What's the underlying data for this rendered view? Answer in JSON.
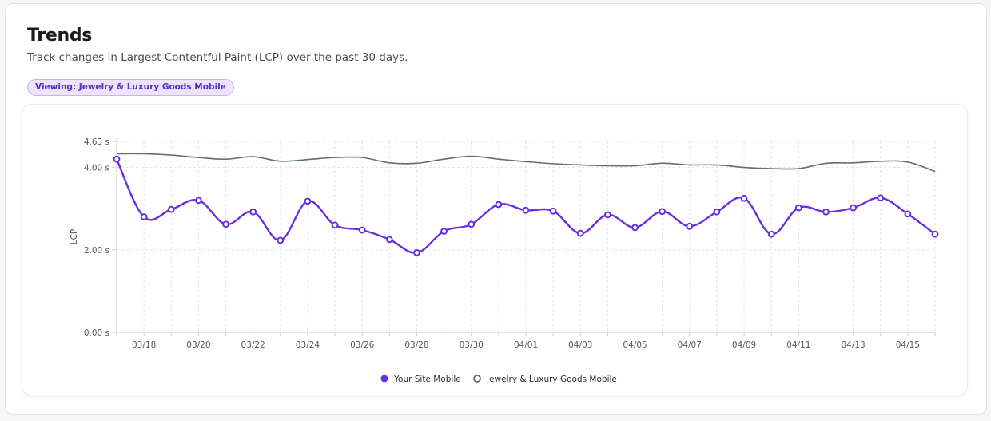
{
  "header": {
    "title": "Trends",
    "subtitle": "Track changes in Largest Contentful Paint (LCP) over the past 30 days.",
    "badge": "Viewing: Jewelry & Luxury Goods Mobile"
  },
  "colors": {
    "site": "#6a2fe0",
    "benchmark": "#5b7177",
    "grid": "#e3e3e8",
    "axis": "#cfcfd6"
  },
  "chart_data": {
    "type": "line",
    "title": "",
    "xlabel": "",
    "ylabel": "LCP",
    "ylim": [
      0,
      4.63
    ],
    "y_ticks": [
      {
        "value": 0,
        "label": "0.00 s"
      },
      {
        "value": 2,
        "label": "2.00 s"
      },
      {
        "value": 4,
        "label": "4.00 s"
      },
      {
        "value": 4.63,
        "label": "4.63 s"
      }
    ],
    "x": [
      "03/17",
      "03/18",
      "03/19",
      "03/20",
      "03/21",
      "03/22",
      "03/23",
      "03/24",
      "03/25",
      "03/26",
      "03/27",
      "03/28",
      "03/29",
      "03/30",
      "03/31",
      "04/01",
      "04/02",
      "04/03",
      "04/04",
      "04/05",
      "04/06",
      "04/07",
      "04/08",
      "04/09",
      "04/10",
      "04/11",
      "04/12",
      "04/13",
      "04/14",
      "04/15",
      "04/16"
    ],
    "x_tick_labels": [
      "03/18",
      "03/20",
      "03/22",
      "03/24",
      "03/26",
      "03/28",
      "03/30",
      "04/01",
      "04/03",
      "04/05",
      "04/07",
      "04/09",
      "04/11",
      "04/13",
      "04/15"
    ],
    "grid": true,
    "legend_position": "bottom",
    "series": [
      {
        "name": "Your Site Mobile",
        "values": [
          4.2,
          2.8,
          2.98,
          3.2,
          2.62,
          2.92,
          2.23,
          3.18,
          2.6,
          2.48,
          2.25,
          1.93,
          2.45,
          2.62,
          3.1,
          2.96,
          2.94,
          2.4,
          2.85,
          2.54,
          2.93,
          2.57,
          2.92,
          3.25,
          2.38,
          3.02,
          2.92,
          3.02,
          3.26,
          2.87,
          2.38
        ],
        "markers": true
      },
      {
        "name": "Jewelry & Luxury Goods Mobile",
        "values": [
          4.33,
          4.33,
          4.3,
          4.24,
          4.2,
          4.26,
          4.15,
          4.19,
          4.24,
          4.24,
          4.11,
          4.1,
          4.2,
          4.27,
          4.2,
          4.14,
          4.09,
          4.06,
          4.04,
          4.04,
          4.1,
          4.06,
          4.06,
          4.0,
          3.97,
          3.97,
          4.1,
          4.11,
          4.15,
          4.13,
          3.9
        ],
        "markers": false
      }
    ]
  }
}
